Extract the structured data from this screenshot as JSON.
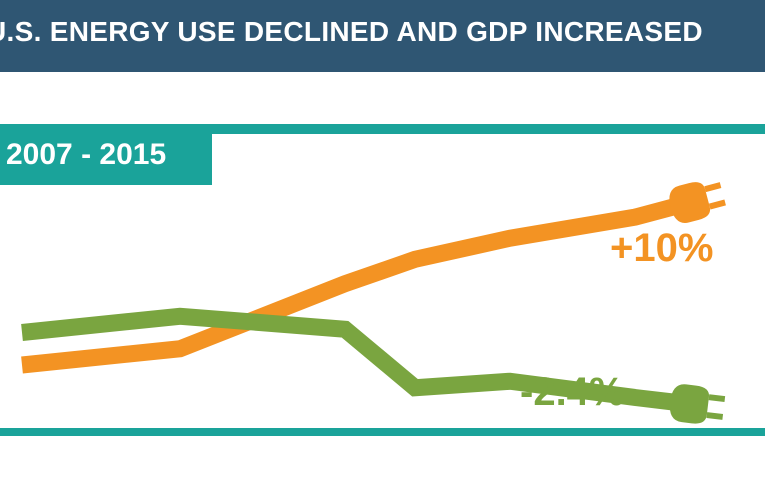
{
  "header": {
    "title": "U.S. ENERGY USE DECLINED AND GDP INCREASED"
  },
  "period": "2007 - 2015",
  "colors": {
    "gdp": "#f39323",
    "energy": "#7aa540",
    "teal": "#1aa39a",
    "navy": "#2f5673"
  },
  "chart_data": {
    "type": "line",
    "title": "U.S. ENERGY USE DECLINED AND GDP INCREASED",
    "subtitle": "2007 - 2015",
    "x": [
      0,
      1,
      2,
      3,
      4,
      5,
      6
    ],
    "ylim": [
      -4,
      12
    ],
    "grid": false,
    "series": [
      {
        "key": "gdp",
        "end_label": "+10%",
        "values": [
          0,
          1,
          5,
          6.5,
          7.8,
          9.1,
          10
        ],
        "icon": "plug-icon"
      },
      {
        "key": "energy",
        "end_label": "-2.4%",
        "values": [
          2.0,
          3.0,
          2.2,
          -1.4,
          -1.0,
          -2.0,
          -2.4
        ],
        "icon": "plug-icon"
      }
    ]
  }
}
